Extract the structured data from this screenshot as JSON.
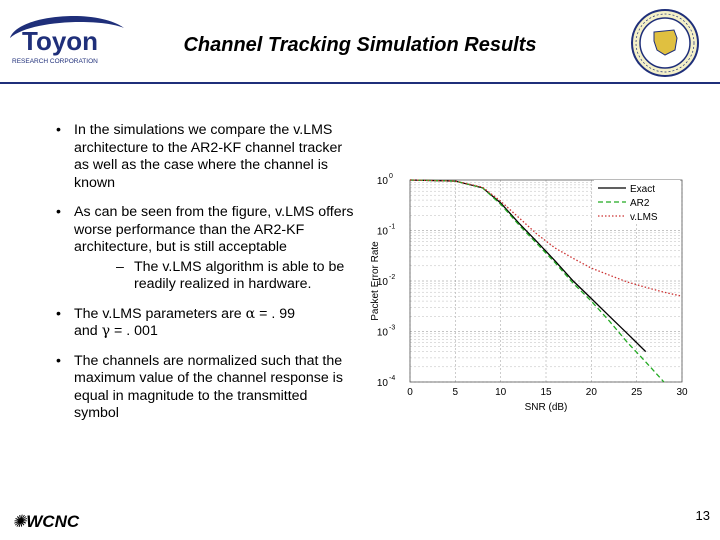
{
  "header": {
    "logo_text": "Toyon",
    "logo_subtext": "RESEARCH CORPORATION",
    "title": "Channel Tracking Simulation Results"
  },
  "bullets": [
    {
      "text": "In the simulations we compare the v.LMS architecture to the AR2-KF channel tracker as well as the case where the channel is known"
    },
    {
      "text": "As can be seen from the figure, v.LMS offers worse performance than the AR2-KF architecture, but is still acceptable",
      "sub": "The v.LMS algorithm is able to be readily realized in hardware."
    },
    {
      "prefix": "The v.LMS parameters are ",
      "alpha_sym": "α",
      "alpha_val": " = . 99",
      "and": "and ",
      "gamma_sym": "γ",
      "gamma_val": " = . 001"
    },
    {
      "text": "The channels are normalized such that the maximum value of the channel response is equal in magnitude to the transmitted symbol"
    }
  ],
  "bullet_glyph": "•",
  "sub_glyph": "–",
  "footer": {
    "conference": "WCNC",
    "page_number": "13"
  },
  "chart_data": {
    "type": "line",
    "xlabel": "SNR (dB)",
    "ylabel": "Packet Error Rate",
    "xlim": [
      0,
      30
    ],
    "ylim_log10": [
      -4,
      0
    ],
    "y_scale": "log",
    "x_ticks": [
      "0",
      "5",
      "10",
      "15",
      "20",
      "25",
      "30"
    ],
    "y_ticks": [
      {
        "base": "10",
        "exp": "0"
      },
      {
        "base": "10",
        "exp": "-1"
      },
      {
        "base": "10",
        "exp": "-2"
      },
      {
        "base": "10",
        "exp": "-3"
      },
      {
        "base": "10",
        "exp": "-4"
      }
    ],
    "grid": true,
    "legend_position": "top-right",
    "series": [
      {
        "name": "Exact",
        "color": "#000000",
        "style": "solid",
        "x": [
          0,
          5,
          8,
          10,
          12,
          14,
          16,
          18,
          20,
          22,
          24,
          26
        ],
        "y": [
          1.0,
          0.95,
          0.7,
          0.35,
          0.14,
          0.06,
          0.025,
          0.01,
          0.0045,
          0.002,
          0.0009,
          0.0004
        ]
      },
      {
        "name": "AR2",
        "color": "#22aa22",
        "style": "dashed",
        "x": [
          0,
          5,
          8,
          10,
          12,
          14,
          16,
          18,
          20,
          22,
          24,
          26,
          28
        ],
        "y": [
          1.0,
          0.95,
          0.7,
          0.33,
          0.13,
          0.055,
          0.023,
          0.009,
          0.004,
          0.0016,
          0.0006,
          0.00025,
          0.0001
        ]
      },
      {
        "name": "v.LMS",
        "color": "#cc3333",
        "style": "dotted",
        "x": [
          0,
          5,
          8,
          10,
          12,
          14,
          16,
          18,
          20,
          22,
          24,
          26,
          28,
          30
        ],
        "y": [
          1.0,
          0.95,
          0.72,
          0.38,
          0.18,
          0.085,
          0.045,
          0.028,
          0.018,
          0.013,
          0.0095,
          0.0075,
          0.006,
          0.005
        ]
      }
    ]
  }
}
